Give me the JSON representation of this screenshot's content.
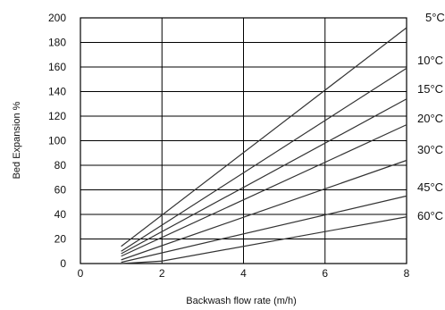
{
  "chart_data": {
    "type": "line",
    "title": "",
    "xlabel": "Backwash flow rate (m/h)",
    "ylabel": "Bed Expansion %",
    "xlim": [
      0,
      8
    ],
    "ylim": [
      0,
      200
    ],
    "x_ticks": [
      "0",
      "2",
      "4",
      "6",
      "8"
    ],
    "y_ticks": [
      "0",
      "20",
      "40",
      "60",
      "80",
      "100",
      "120",
      "140",
      "160",
      "180",
      "200"
    ],
    "grid": true,
    "legend": "right (labels at line ends)",
    "line_color": "#333333",
    "series": [
      {
        "name": "5°C",
        "points": [
          [
            1,
            14
          ],
          [
            8,
            192
          ]
        ]
      },
      {
        "name": "10°C",
        "points": [
          [
            1,
            10
          ],
          [
            8,
            159
          ]
        ]
      },
      {
        "name": "15°C",
        "points": [
          [
            1,
            8
          ],
          [
            8,
            134
          ]
        ]
      },
      {
        "name": "20°C",
        "points": [
          [
            1,
            6
          ],
          [
            8,
            113
          ]
        ]
      },
      {
        "name": "30°C",
        "points": [
          [
            1,
            3
          ],
          [
            8,
            84
          ]
        ]
      },
      {
        "name": "45°C",
        "points": [
          [
            1,
            1
          ],
          [
            8,
            55
          ]
        ]
      },
      {
        "name": "60°C",
        "points": [
          [
            1,
            0
          ],
          [
            2,
            2
          ],
          [
            8,
            38
          ]
        ]
      }
    ]
  }
}
